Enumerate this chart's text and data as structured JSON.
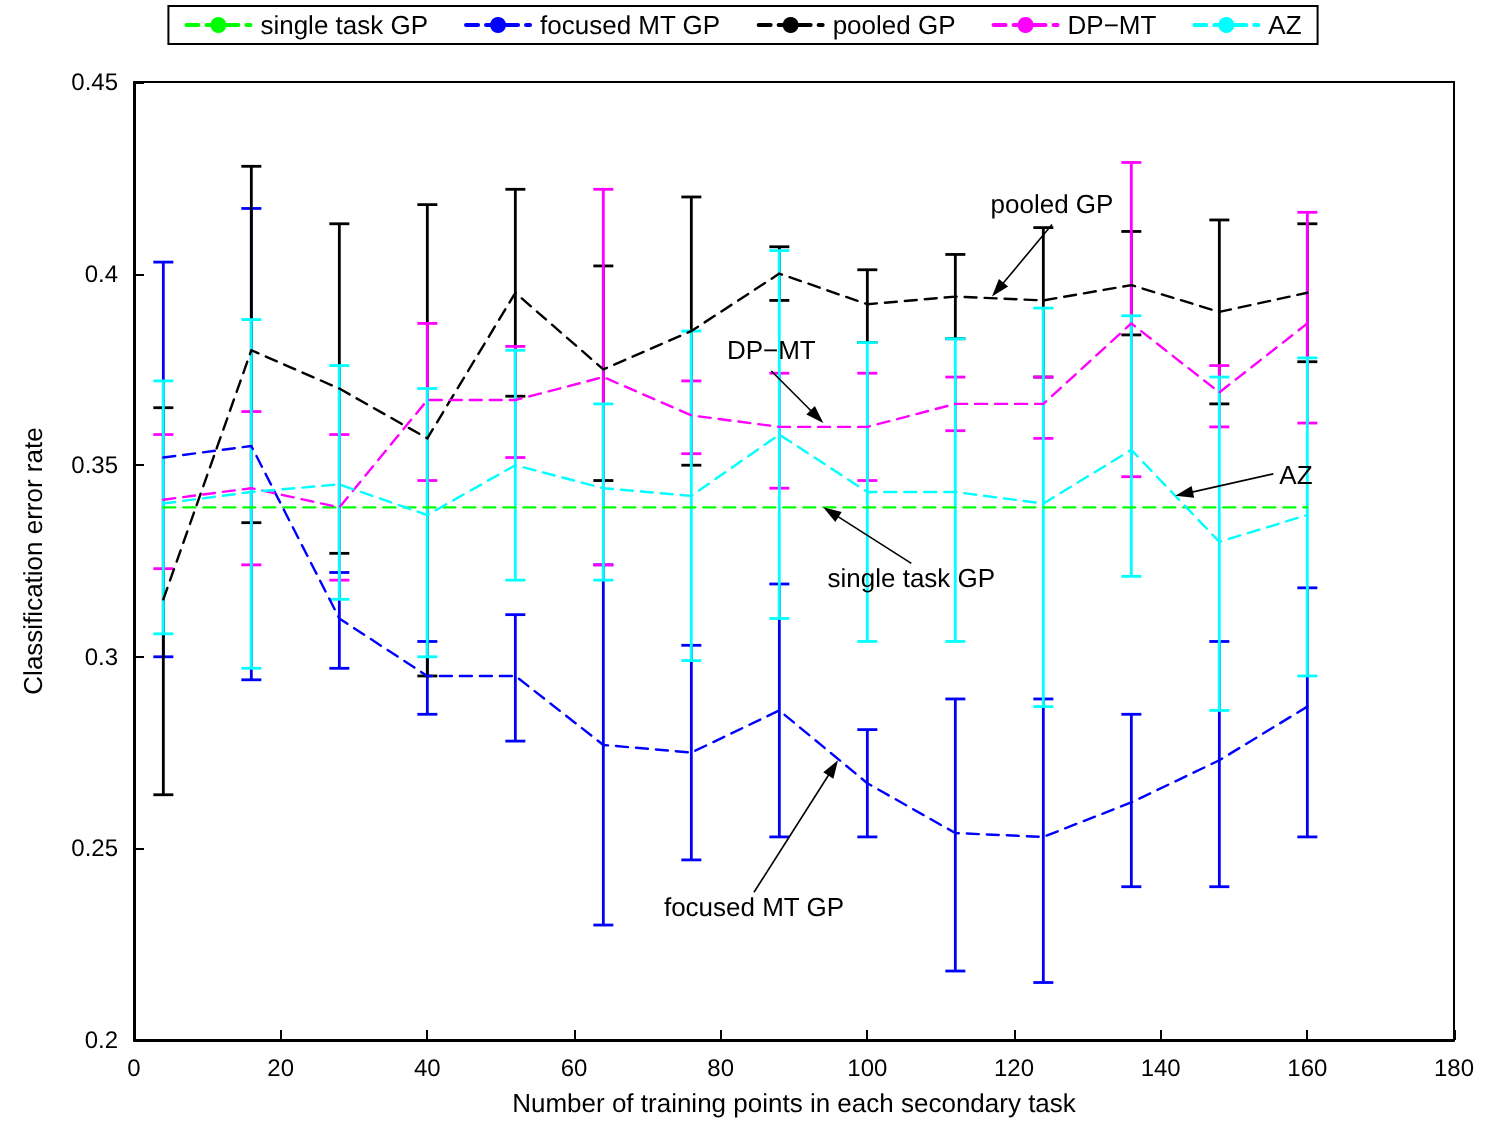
{
  "chart_data": {
    "type": "line",
    "xlabel": "Number of training points in each secondary task",
    "ylabel": "Classification error rate",
    "x": [
      4,
      16,
      28,
      40,
      52,
      64,
      76,
      88,
      100,
      112,
      124,
      136,
      148,
      160
    ],
    "xlim": [
      0,
      180
    ],
    "xticks": [
      0,
      20,
      40,
      60,
      80,
      100,
      120,
      140,
      160,
      180
    ],
    "ylim": [
      0.2,
      0.45
    ],
    "yticks": [
      0.2,
      0.25,
      0.3,
      0.35,
      0.4,
      0.45
    ],
    "legend": "top",
    "grid": false,
    "marker": "none",
    "line_style": "dashed",
    "series": [
      {
        "name": "single task GP",
        "color": "#00ff00",
        "values": [
          0.339,
          0.339,
          0.339,
          0.339,
          0.339,
          0.339,
          0.339,
          0.339,
          0.339,
          0.339,
          0.339,
          0.339,
          0.339,
          0.339
        ]
      },
      {
        "name": "focused MT GP",
        "color": "#0000ff",
        "values": [
          0.352,
          0.355,
          0.31,
          0.295,
          0.295,
          0.277,
          0.275,
          0.286,
          0.267,
          0.254,
          0.253,
          0.262,
          0.273,
          0.287
        ],
        "errors": [
          [
            0.3,
            0.403
          ],
          [
            0.294,
            0.417
          ],
          [
            0.297,
            0.322
          ],
          [
            0.285,
            0.304
          ],
          [
            0.278,
            0.311
          ],
          [
            0.23,
            0.324
          ],
          [
            0.247,
            0.303
          ],
          [
            0.253,
            0.319
          ],
          [
            0.253,
            0.281
          ],
          [
            0.218,
            0.289
          ],
          [
            0.215,
            0.289
          ],
          [
            0.24,
            0.285
          ],
          [
            0.24,
            0.304
          ],
          [
            0.253,
            0.318
          ]
        ]
      },
      {
        "name": "pooled GP",
        "color": "#000000",
        "values": [
          0.315,
          0.38,
          0.37,
          0.357,
          0.395,
          0.375,
          0.385,
          0.4,
          0.392,
          0.394,
          0.393,
          0.397,
          0.39,
          0.395
        ],
        "errors": [
          [
            0.264,
            0.365
          ],
          [
            0.335,
            0.428
          ],
          [
            0.327,
            0.413
          ],
          [
            0.295,
            0.418
          ],
          [
            0.368,
            0.422
          ],
          [
            0.346,
            0.402
          ],
          [
            0.35,
            0.42
          ],
          [
            0.393,
            0.407
          ],
          [
            0.382,
            0.401
          ],
          [
            0.383,
            0.405
          ],
          [
            0.373,
            0.412
          ],
          [
            0.384,
            0.411
          ],
          [
            0.366,
            0.414
          ],
          [
            0.377,
            0.413
          ]
        ]
      },
      {
        "name": "DP−MT",
        "color": "#ff00ff",
        "values": [
          0.341,
          0.344,
          0.339,
          0.367,
          0.367,
          0.373,
          0.363,
          0.36,
          0.36,
          0.366,
          0.366,
          0.387,
          0.369,
          0.387
        ],
        "errors": [
          [
            0.323,
            0.358
          ],
          [
            0.324,
            0.364
          ],
          [
            0.32,
            0.358
          ],
          [
            0.346,
            0.387
          ],
          [
            0.352,
            0.381
          ],
          [
            0.324,
            0.422
          ],
          [
            0.353,
            0.372
          ],
          [
            0.344,
            0.374
          ],
          [
            0.346,
            0.374
          ],
          [
            0.359,
            0.373
          ],
          [
            0.357,
            0.373
          ],
          [
            0.347,
            0.429
          ],
          [
            0.36,
            0.376
          ],
          [
            0.361,
            0.416
          ]
        ]
      },
      {
        "name": "AZ",
        "color": "#00ffff",
        "values": [
          0.34,
          0.343,
          0.345,
          0.337,
          0.35,
          0.344,
          0.342,
          0.358,
          0.343,
          0.343,
          0.34,
          0.354,
          0.33,
          0.337
        ],
        "errors": [
          [
            0.306,
            0.372
          ],
          [
            0.297,
            0.388
          ],
          [
            0.315,
            0.376
          ],
          [
            0.3,
            0.37
          ],
          [
            0.32,
            0.38
          ],
          [
            0.32,
            0.366
          ],
          [
            0.299,
            0.385
          ],
          [
            0.31,
            0.406
          ],
          [
            0.304,
            0.382
          ],
          [
            0.304,
            0.383
          ],
          [
            0.287,
            0.391
          ],
          [
            0.321,
            0.389
          ],
          [
            0.286,
            0.373
          ],
          [
            0.295,
            0.378
          ]
        ]
      }
    ],
    "annotations": [
      {
        "text": "pooled GP",
        "x": 117,
        "y": 0.394
      },
      {
        "text": "DP−MT",
        "x": 94,
        "y": 0.361
      },
      {
        "text": "AZ",
        "x": 142,
        "y": 0.342
      },
      {
        "text": "single task GP",
        "x": 94,
        "y": 0.339
      },
      {
        "text": "focused MT GP",
        "x": 96,
        "y": 0.273
      }
    ]
  }
}
